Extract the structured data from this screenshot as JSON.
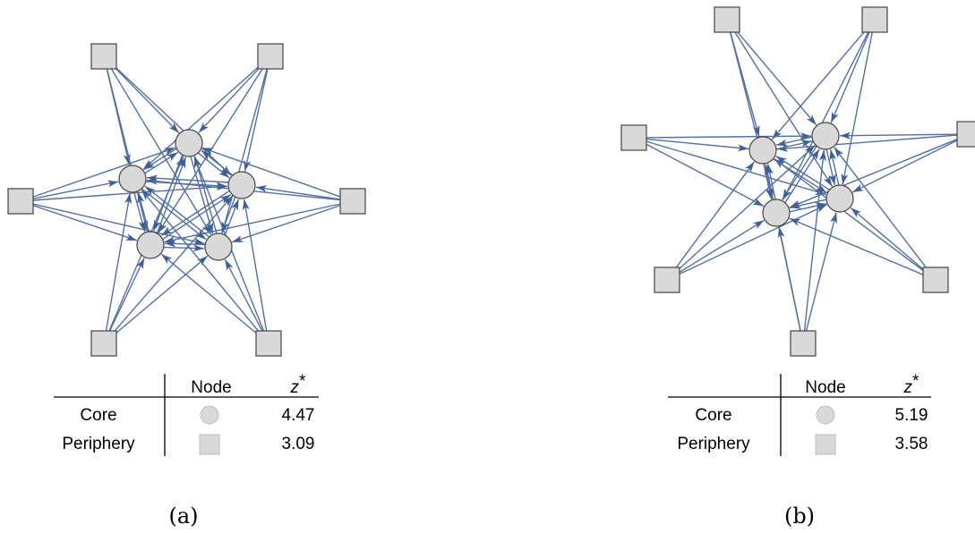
{
  "panels": [
    {
      "id": "a",
      "caption": "(a)",
      "graph": {
        "core": [
          [
            211,
            160
          ],
          [
            148,
            200
          ],
          [
            270,
            207
          ],
          [
            168,
            274
          ],
          [
            244,
            276
          ]
        ],
        "periphery": [
          [
            116,
            63
          ],
          [
            302,
            63
          ],
          [
            23,
            225
          ],
          [
            394,
            225
          ],
          [
            116,
            384
          ],
          [
            300,
            384
          ]
        ]
      },
      "table": {
        "header_node": "Node",
        "header_z": "z",
        "header_z_sup": "*",
        "rows": [
          {
            "label": "Core",
            "symbol": "circle",
            "value": "4.47"
          },
          {
            "label": "Periphery",
            "symbol": "square",
            "value": "3.09"
          }
        ]
      }
    },
    {
      "id": "b",
      "caption": "(b)",
      "graph": {
        "core": [
          [
            852,
            168
          ],
          [
            922,
            152
          ],
          [
            938,
            222
          ],
          [
            867,
            238
          ]
        ],
        "periphery": [
          [
            812,
            22
          ],
          [
            977,
            22
          ],
          [
            708,
            154
          ],
          [
            1083,
            150
          ],
          [
            745,
            313
          ],
          [
            1045,
            313
          ],
          [
            897,
            384
          ]
        ]
      },
      "table": {
        "header_node": "Node",
        "header_z": "z",
        "header_z_sup": "*",
        "rows": [
          {
            "label": "Core",
            "symbol": "circle",
            "value": "5.19"
          },
          {
            "label": "Periphery",
            "symbol": "square",
            "value": "3.58"
          }
        ]
      }
    }
  ]
}
